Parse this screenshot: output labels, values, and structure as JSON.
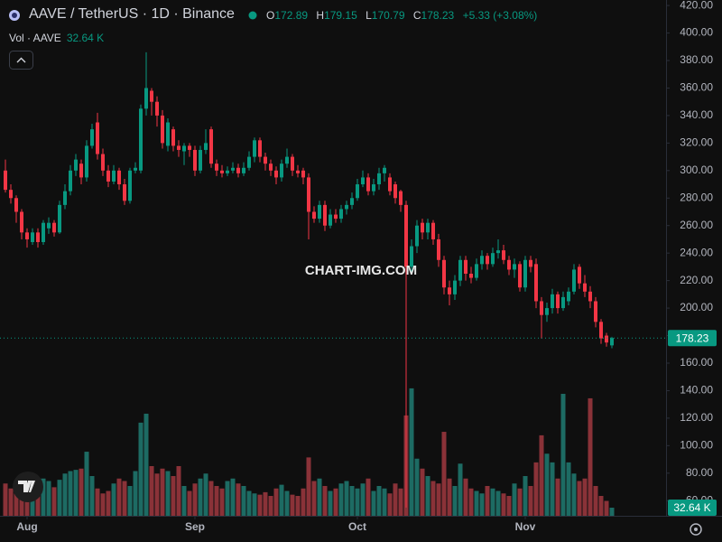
{
  "chart_data": {
    "type": "candlestick",
    "title": "AAVE / TetherUS · 1D · Binance",
    "ohlc_labels": [
      "O",
      "H",
      "L",
      "C"
    ],
    "change_label": "+5.33 (+3.08%)",
    "volume_title": "Vol · AAVE",
    "last_volume_label": "32.64 K",
    "watermark": "CHART-IMG.COM",
    "up_color": "#089981",
    "down_color": "#f23645",
    "volume_up_color": "#1d6b63",
    "volume_down_color": "#8a3238",
    "xlim": [
      -1,
      122
    ],
    "xticks": [
      {
        "value": 4,
        "label": "Aug"
      },
      {
        "value": 35,
        "label": "Sep"
      },
      {
        "value": 65,
        "label": "Oct"
      },
      {
        "value": 96,
        "label": "Nov"
      }
    ],
    "ylim": [
      49,
      424
    ],
    "yticks": [
      {
        "value": 60,
        "label": "60.00"
      },
      {
        "value": 80,
        "label": "80.00"
      },
      {
        "value": 100,
        "label": "100.00"
      },
      {
        "value": 120,
        "label": "120.00"
      },
      {
        "value": 140,
        "label": "140.00"
      },
      {
        "value": 160,
        "label": "160.00"
      },
      {
        "value": 180,
        "label": "180.00"
      },
      {
        "value": 200,
        "label": "200.00"
      },
      {
        "value": 220,
        "label": "220.00"
      },
      {
        "value": 240,
        "label": "240.00"
      },
      {
        "value": 260,
        "label": "260.00"
      },
      {
        "value": 280,
        "label": "280.00"
      },
      {
        "value": 300,
        "label": "300.00"
      },
      {
        "value": 320,
        "label": "320.00"
      },
      {
        "value": 340,
        "label": "340.00"
      },
      {
        "value": 360,
        "label": "360.00"
      },
      {
        "value": 380,
        "label": "380.00"
      },
      {
        "value": 400,
        "label": "400.00"
      },
      {
        "value": 420,
        "label": "420.00"
      }
    ],
    "volume_lim": [
      0,
      600
    ],
    "grid": false,
    "open": [
      300,
      286,
      280,
      270,
      255,
      248,
      255,
      248,
      258,
      262,
      255,
      275,
      285,
      300,
      305,
      295,
      318,
      335,
      312,
      300,
      292,
      300,
      290,
      278,
      300,
      300,
      345,
      358,
      350,
      340,
      318,
      330,
      318,
      314,
      318,
      315,
      300,
      315,
      330,
      305,
      300,
      298,
      300,
      302,
      298,
      302,
      310,
      322,
      310,
      305,
      300,
      295,
      305,
      310,
      300,
      300,
      295,
      270,
      265,
      275,
      260,
      268,
      265,
      272,
      275,
      280,
      290,
      295,
      285,
      290,
      298,
      295,
      290,
      285,
      275,
      230,
      245,
      262,
      255,
      262,
      250,
      235,
      215,
      210,
      220,
      235,
      225,
      222,
      232,
      238,
      232,
      240,
      242,
      235,
      228,
      232,
      215,
      235,
      232,
      205,
      195,
      200,
      210,
      200,
      205,
      212,
      230,
      218,
      212,
      205,
      190,
      180,
      172.89
    ],
    "high": [
      308,
      290,
      282,
      272,
      258,
      258,
      258,
      264,
      266,
      264,
      278,
      290,
      304,
      312,
      308,
      322,
      334,
      342,
      316,
      304,
      304,
      302,
      294,
      302,
      306,
      348,
      386,
      360,
      354,
      344,
      338,
      332,
      322,
      320,
      320,
      318,
      318,
      330,
      332,
      308,
      304,
      303,
      306,
      305,
      306,
      314,
      324,
      324,
      313,
      308,
      303,
      308,
      316,
      312,
      304,
      302,
      298,
      274,
      278,
      278,
      272,
      272,
      275,
      278,
      284,
      294,
      300,
      298,
      294,
      302,
      304,
      298,
      292,
      286,
      278,
      250,
      264,
      265,
      265,
      264,
      254,
      238,
      220,
      224,
      238,
      238,
      230,
      236,
      242,
      240,
      244,
      250,
      246,
      238,
      236,
      234,
      238,
      238,
      236,
      208,
      204,
      214,
      212,
      212,
      215,
      232,
      232,
      224,
      216,
      208,
      192,
      182,
      179.15
    ],
    "low": [
      284,
      276,
      262,
      250,
      244,
      246,
      244,
      246,
      254,
      252,
      254,
      272,
      282,
      296,
      290,
      292,
      316,
      308,
      296,
      288,
      290,
      286,
      275,
      276,
      298,
      298,
      340,
      340,
      332,
      316,
      314,
      314,
      310,
      304,
      310,
      296,
      298,
      312,
      302,
      296,
      295,
      296,
      298,
      295,
      296,
      300,
      306,
      306,
      300,
      296,
      290,
      292,
      302,
      296,
      295,
      290,
      250,
      262,
      262,
      256,
      258,
      262,
      262,
      268,
      272,
      278,
      288,
      282,
      282,
      286,
      292,
      282,
      276,
      270,
      55,
      226,
      240,
      250,
      250,
      246,
      230,
      210,
      202,
      206,
      216,
      220,
      218,
      220,
      228,
      228,
      230,
      236,
      232,
      224,
      222,
      212,
      212,
      226,
      200,
      178,
      190,
      196,
      196,
      198,
      202,
      210,
      214,
      208,
      200,
      186,
      174,
      172,
      170.79
    ],
    "close": [
      286,
      280,
      270,
      255,
      250,
      255,
      248,
      262,
      262,
      255,
      275,
      285,
      300,
      308,
      295,
      318,
      330,
      312,
      300,
      292,
      300,
      290,
      278,
      300,
      302,
      345,
      360,
      350,
      340,
      320,
      335,
      318,
      315,
      318,
      315,
      300,
      315,
      320,
      305,
      300,
      298,
      300,
      302,
      298,
      302,
      310,
      322,
      310,
      305,
      300,
      295,
      305,
      310,
      300,
      298,
      295,
      270,
      265,
      275,
      260,
      268,
      265,
      272,
      275,
      280,
      290,
      295,
      285,
      290,
      298,
      302,
      285,
      280,
      275,
      230,
      245,
      260,
      255,
      262,
      250,
      235,
      215,
      210,
      220,
      235,
      225,
      222,
      232,
      238,
      232,
      240,
      242,
      235,
      228,
      232,
      215,
      235,
      230,
      205,
      195,
      200,
      210,
      200,
      208,
      212,
      228,
      218,
      212,
      205,
      190,
      178,
      175,
      178.23
    ],
    "volume": [
      130,
      110,
      95,
      140,
      120,
      100,
      135,
      150,
      140,
      115,
      145,
      170,
      180,
      185,
      190,
      258,
      160,
      110,
      90,
      100,
      130,
      150,
      140,
      120,
      180,
      375,
      411,
      200,
      170,
      190,
      180,
      160,
      200,
      120,
      100,
      130,
      150,
      170,
      140,
      120,
      110,
      140,
      150,
      130,
      120,
      100,
      90,
      85,
      95,
      80,
      110,
      125,
      100,
      85,
      80,
      110,
      235,
      140,
      150,
      120,
      100,
      110,
      130,
      140,
      120,
      110,
      130,
      150,
      100,
      120,
      110,
      90,
      130,
      110,
      404,
      513,
      230,
      190,
      160,
      140,
      130,
      338,
      150,
      120,
      210,
      150,
      110,
      100,
      90,
      120,
      110,
      100,
      90,
      80,
      130,
      110,
      160,
      120,
      215,
      324,
      250,
      215,
      150,
      491,
      215,
      170,
      140,
      150,
      473,
      120,
      80,
      60,
      32.64
    ]
  }
}
